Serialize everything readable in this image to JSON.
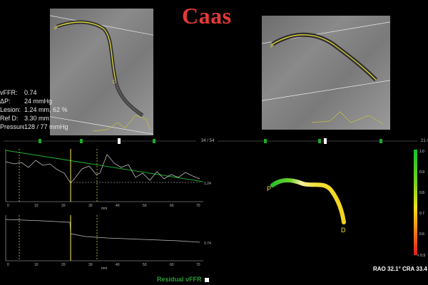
{
  "brand": "Caas",
  "stats": [
    {
      "label": "vFFR:",
      "value": "0.74"
    },
    {
      "label": "ΔP:",
      "value": "24 mmHg"
    },
    {
      "label": "Lesion:",
      "value": "1.24 mm, 62 %"
    },
    {
      "label": "Ref D:",
      "value": "3.30 mm"
    },
    {
      "label": "Pressure:",
      "value": "128 / 77 mmHg"
    }
  ],
  "left_view": {
    "frame_counter": "34 / 54",
    "marker_p": "P",
    "marker_d": "D"
  },
  "right_view": {
    "frame_counter": "21 /",
    "marker_p": "P"
  },
  "graph_top": {
    "value_label": "1.24",
    "x_axis_label": "mm",
    "x_ticks": [
      "0",
      "10",
      "20",
      "30",
      "40",
      "50",
      "60",
      "70"
    ]
  },
  "graph_bottom": {
    "value_label": "0.74",
    "x_axis_label": "mm",
    "x_ticks": [
      "0",
      "10",
      "20",
      "30",
      "40",
      "50",
      "60",
      "70"
    ]
  },
  "legend": {
    "label": "Residual vFFR"
  },
  "vessel_3d": {
    "marker_p": "P",
    "marker_d": "D"
  },
  "color_scale": {
    "labels": [
      "1.0",
      "0.9",
      "0.8",
      "0.7",
      "0.6",
      "< 0.5"
    ]
  },
  "angles": {
    "text": "RAO 32.1°   CRA 33.4"
  },
  "colors": {
    "brand": "#e53935",
    "graph_line": "#bdbdbd",
    "trend": "#1faa2a",
    "marker": "#d7c84a",
    "slider_marker": "#1faa2a"
  }
}
